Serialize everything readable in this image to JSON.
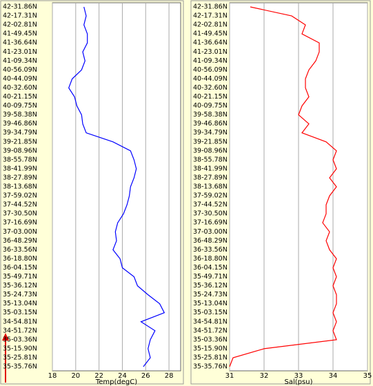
{
  "chart_data": [
    {
      "type": "line",
      "x_label": "Temp(degC)",
      "color": "#0000ff",
      "categories": [
        "42-31.86N",
        "42-17.31N",
        "42-02.81N",
        "41-49.45N",
        "41-36.64N",
        "41-23.01N",
        "41-09.34N",
        "40-56.09N",
        "40-44.09N",
        "40-32.60N",
        "40-21.15N",
        "40-09.75N",
        "39-58.38N",
        "39-46.86N",
        "39-34.79N",
        "39-21.85N",
        "39-08.96N",
        "38-55.78N",
        "38-41.99N",
        "38-27.89N",
        "38-13.68N",
        "37-59.02N",
        "37-44.52N",
        "37-30.50N",
        "37-16.69N",
        "37-03.00N",
        "36-48.29N",
        "36-33.56N",
        "36-18.80N",
        "36-04.15N",
        "35-49.71N",
        "35-36.12N",
        "35-24.73N",
        "35-13.04N",
        "35-03.15N",
        "34-54.81N",
        "34-51.72N",
        "35-03.36N",
        "35-15.90N",
        "35-25.81N",
        "35-35.76N"
      ],
      "values": [
        20.7,
        20.9,
        20.7,
        21.0,
        21.0,
        20.6,
        20.8,
        20.5,
        19.7,
        19.4,
        19.9,
        20.1,
        20.5,
        20.6,
        20.9,
        23.2,
        24.7,
        25.0,
        25.2,
        25.0,
        24.7,
        24.6,
        24.4,
        24.1,
        23.6,
        23.4,
        23.5,
        23.2,
        23.8,
        24.0,
        25.0,
        25.3,
        26.2,
        27.2,
        27.6,
        25.6,
        26.8,
        26.4,
        26.2,
        26.4,
        25.8
      ],
      "xlim": [
        18,
        29
      ],
      "xticks": [
        18,
        20,
        22,
        24,
        26,
        28
      ],
      "grid": true
    },
    {
      "type": "line",
      "x_label": "Sal(psu)",
      "color": "#ff0000",
      "categories": [
        "42-31.86N",
        "42-17.31N",
        "42-02.81N",
        "41-49.45N",
        "41-36.64N",
        "41-23.01N",
        "41-09.34N",
        "40-56.09N",
        "40-44.09N",
        "40-32.60N",
        "40-21.15N",
        "40-09.75N",
        "39-58.38N",
        "39-46.86N",
        "39-34.79N",
        "39-21.85N",
        "39-08.96N",
        "38-55.78N",
        "38-41.99N",
        "38-27.89N",
        "38-13.68N",
        "37-59.02N",
        "37-44.52N",
        "37-30.50N",
        "37-16.69N",
        "37-03.00N",
        "36-48.29N",
        "36-33.56N",
        "36-18.80N",
        "36-04.15N",
        "35-49.71N",
        "35-36.12N",
        "35-24.73N",
        "35-13.04N",
        "35-03.15N",
        "34-54.81N",
        "34-51.72N",
        "35-03.36N",
        "35-15.90N",
        "35-25.81N",
        "35-35.76N"
      ],
      "values": [
        31.6,
        32.8,
        33.2,
        33.1,
        33.6,
        33.6,
        33.5,
        33.3,
        33.2,
        33.2,
        33.3,
        33.1,
        33.0,
        33.3,
        33.1,
        33.8,
        34.1,
        34.0,
        34.1,
        33.9,
        34.1,
        33.9,
        33.8,
        33.8,
        33.7,
        33.9,
        33.8,
        33.9,
        34.1,
        34.0,
        34.1,
        34.0,
        34.1,
        34.1,
        34.0,
        34.1,
        34.0,
        34.1,
        32.0,
        31.1,
        31.0
      ],
      "xlim": [
        31,
        35
      ],
      "xticks": [
        31,
        32,
        33,
        34,
        35
      ],
      "grid": true
    }
  ]
}
